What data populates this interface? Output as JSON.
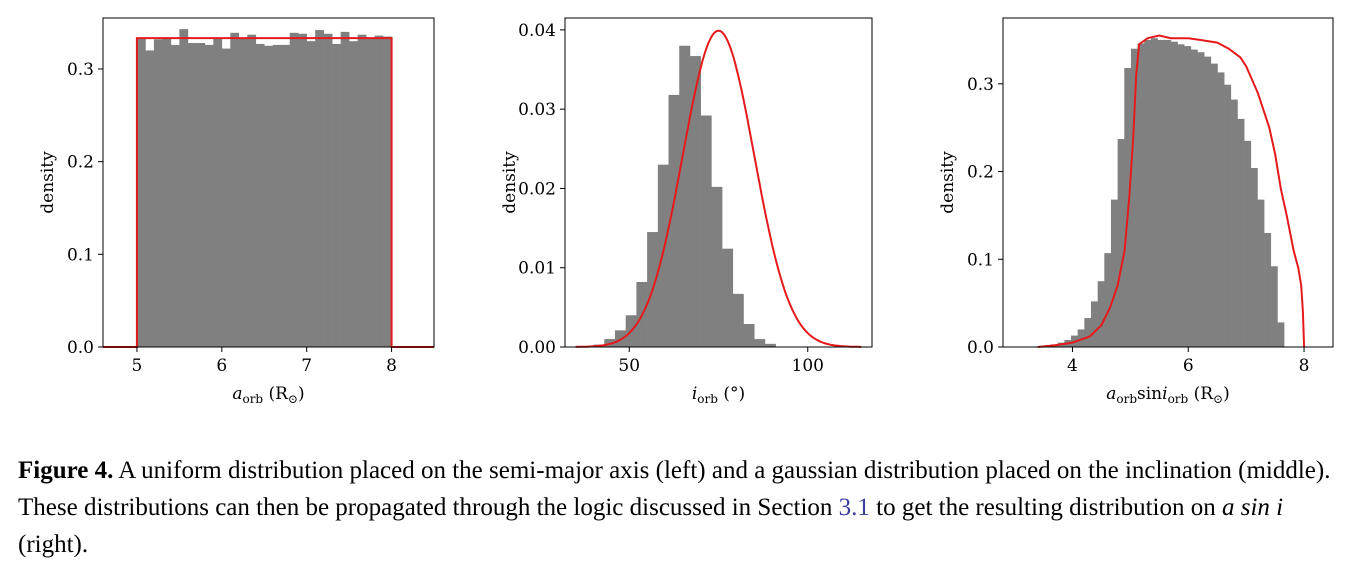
{
  "chart_data": [
    {
      "type": "bar",
      "xlabel": {
        "main": "a",
        "sub": "orb",
        "unit": " (R",
        "sym": "⊙",
        "close": ")"
      },
      "ylabel": "density",
      "xlim": [
        4.6,
        8.5
      ],
      "ylim": [
        0,
        0.355
      ],
      "xticks": [
        "5",
        "6",
        "7",
        "8"
      ],
      "yticks": [
        "0.0",
        "0.1",
        "0.2",
        "0.3"
      ],
      "bins": {
        "start": 5.0,
        "width": 0.1
      },
      "values": [
        0.333,
        0.32,
        0.332,
        0.333,
        0.326,
        0.343,
        0.328,
        0.328,
        0.326,
        0.333,
        0.322,
        0.339,
        0.333,
        0.337,
        0.327,
        0.325,
        0.326,
        0.326,
        0.339,
        0.338,
        0.33,
        0.342,
        0.338,
        0.327,
        0.34,
        0.33,
        0.337,
        0.334,
        0.336,
        0.335
      ],
      "curve": [
        [
          4.6,
          0
        ],
        [
          5.0,
          0
        ],
        [
          5.0,
          0.3333
        ],
        [
          8.0,
          0.3333
        ],
        [
          8.0,
          0
        ],
        [
          8.5,
          0
        ]
      ]
    },
    {
      "type": "bar",
      "xlabel": {
        "main": "i",
        "sub": "orb",
        "unit": " (°)",
        "sym": "",
        "close": ""
      },
      "ylabel": "density",
      "xlim": [
        32,
        118
      ],
      "ylim": [
        0,
        0.0415
      ],
      "xticks": [
        "50",
        "100"
      ],
      "yticks": [
        "0.00",
        "0.01",
        "0.02",
        "0.03",
        "0.04"
      ],
      "bins": {
        "start": 40,
        "width": 3.0
      },
      "values": [
        0.0003,
        0.001,
        0.0021,
        0.004,
        0.0082,
        0.0145,
        0.023,
        0.0318,
        0.038,
        0.0367,
        0.0292,
        0.0202,
        0.0124,
        0.0067,
        0.0029,
        0.001,
        0.0004
      ],
      "curve_gaussian": {
        "mu": 75,
        "sigma": 10,
        "peak": 0.0399,
        "from": 35,
        "to": 115
      }
    },
    {
      "type": "bar",
      "xlabel": {
        "main": "a",
        "sub": "orb",
        "main2": "sin",
        "main3": "i",
        "sub2": "orb",
        "unit": " (R",
        "sym": "⊙",
        "close": ")"
      },
      "ylabel": "density",
      "xlim": [
        2.8,
        8.5
      ],
      "ylim": [
        0,
        0.375
      ],
      "xticks": [
        "4",
        "6",
        "8"
      ],
      "yticks": [
        "0.0",
        "0.1",
        "0.2",
        "0.3"
      ],
      "bins": {
        "start": 3.4,
        "width": 0.115
      },
      "values": [
        0.001,
        0.002,
        0.003,
        0.005,
        0.008,
        0.013,
        0.02,
        0.033,
        0.052,
        0.075,
        0.107,
        0.168,
        0.237,
        0.318,
        0.34,
        0.346,
        0.35,
        0.352,
        0.35,
        0.35,
        0.348,
        0.345,
        0.343,
        0.339,
        0.336,
        0.331,
        0.323,
        0.313,
        0.299,
        0.282,
        0.26,
        0.235,
        0.204,
        0.168,
        0.13,
        0.092,
        0.028
      ],
      "curve": [
        [
          3.4,
          0
        ],
        [
          3.7,
          0.002
        ],
        [
          4.0,
          0.005
        ],
        [
          4.3,
          0.012
        ],
        [
          4.5,
          0.025
        ],
        [
          4.65,
          0.045
        ],
        [
          4.78,
          0.07
        ],
        [
          4.9,
          0.11
        ],
        [
          4.98,
          0.17
        ],
        [
          5.05,
          0.24
        ],
        [
          5.1,
          0.31
        ],
        [
          5.15,
          0.345
        ],
        [
          5.3,
          0.352
        ],
        [
          5.5,
          0.355
        ],
        [
          5.7,
          0.352
        ],
        [
          6.0,
          0.352
        ],
        [
          6.2,
          0.35
        ],
        [
          6.5,
          0.347
        ],
        [
          6.7,
          0.34
        ],
        [
          6.9,
          0.33
        ],
        [
          7.0,
          0.32
        ],
        [
          7.1,
          0.305
        ],
        [
          7.2,
          0.29
        ],
        [
          7.3,
          0.27
        ],
        [
          7.4,
          0.25
        ],
        [
          7.5,
          0.22
        ],
        [
          7.6,
          0.18
        ],
        [
          7.7,
          0.15
        ],
        [
          7.82,
          0.11
        ],
        [
          7.9,
          0.09
        ],
        [
          7.95,
          0.07
        ],
        [
          7.98,
          0.04
        ],
        [
          8.0,
          0.0
        ]
      ]
    }
  ],
  "caption": {
    "label": "Figure 4.",
    "text1": " A uniform distribution placed on the semi-major axis (left) and a gaussian distribution placed on the inclination (middle). These distributions can then be propagated through the logic discussed in Section ",
    "ref": "3.1",
    "text2": " to get the resulting distribution on ",
    "math": "a sin i",
    "text3": " (right)."
  },
  "colors": {
    "bar": "#808080",
    "curve": "#e41a1c",
    "ref": "#3d3d9e"
  }
}
